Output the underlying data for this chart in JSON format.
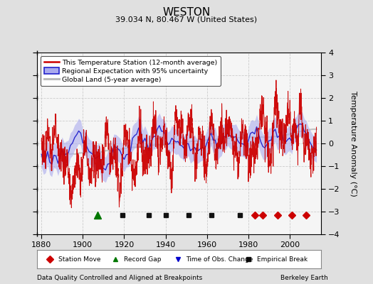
{
  "title": "WESTON",
  "subtitle": "39.034 N, 80.467 W (United States)",
  "xlabel_note": "Data Quality Controlled and Aligned at Breakpoints",
  "credit": "Berkeley Earth",
  "xlim": [
    1878,
    2015
  ],
  "ylim": [
    -4,
    4
  ],
  "yticks": [
    -4,
    -3,
    -2,
    -1,
    0,
    1,
    2,
    3,
    4
  ],
  "xticks": [
    1880,
    1900,
    1920,
    1940,
    1960,
    1980,
    2000
  ],
  "ylabel": "Temperature Anomaly (°C)",
  "bg_color": "#e0e0e0",
  "plot_bg_color": "#f5f5f5",
  "station_color": "#cc0000",
  "regional_line_color": "#2222cc",
  "regional_fill_color": "#aaaaee",
  "global_color": "#bbbbbb",
  "legend_labels": [
    "This Temperature Station (12-month average)",
    "Regional Expectation with 95% uncertainty",
    "Global Land (5-year average)"
  ],
  "marker_events": {
    "station_move": {
      "color": "#cc0000",
      "marker": "D",
      "years": [
        1983,
        1987,
        1994,
        2001,
        2008
      ]
    },
    "record_gap": {
      "color": "#007700",
      "marker": "^",
      "years": [
        1907
      ]
    },
    "time_obs_change": {
      "color": "#0000cc",
      "marker": "v",
      "years": []
    },
    "empirical_break": {
      "color": "#111111",
      "marker": "s",
      "years": [
        1919,
        1932,
        1940,
        1951,
        1962,
        1976
      ]
    }
  },
  "seed": 42
}
